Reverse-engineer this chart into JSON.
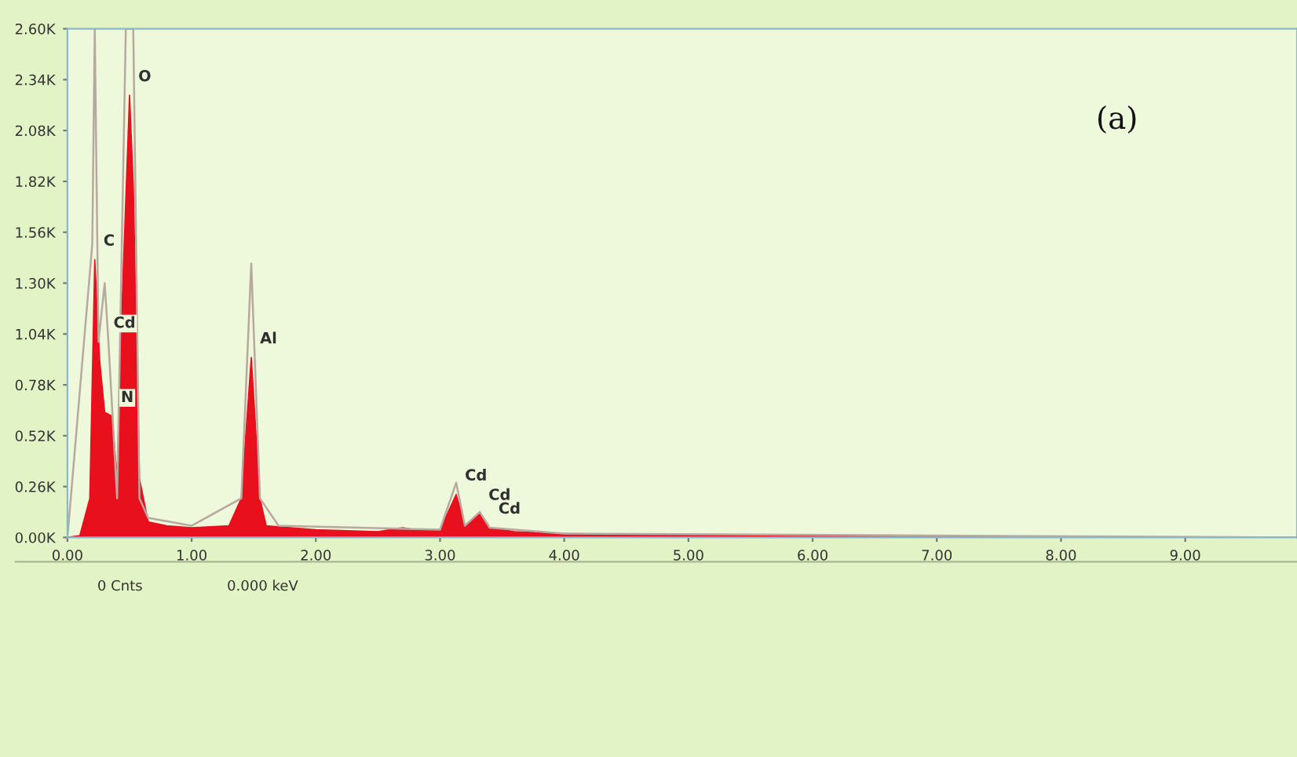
{
  "chart_data": {
    "type": "area",
    "x": [
      0.0,
      0.1,
      0.18,
      0.22,
      0.26,
      0.3,
      0.36,
      0.4,
      0.44,
      0.5,
      0.53,
      0.58,
      0.65,
      0.8,
      1.0,
      1.3,
      1.4,
      1.48,
      1.55,
      1.6,
      2.0,
      2.5,
      2.7,
      2.8,
      3.0,
      3.13,
      3.2,
      3.32,
      3.4,
      3.6,
      4.0,
      5.0,
      6.0,
      8.0,
      9.9
    ],
    "series": [
      {
        "color": "#e8101c",
        "values": [
          0,
          10,
          200,
          1420,
          900,
          640,
          620,
          300,
          1200,
          2260,
          1800,
          300,
          80,
          60,
          50,
          60,
          200,
          920,
          200,
          60,
          40,
          30,
          50,
          40,
          40,
          220,
          60,
          120,
          50,
          30,
          20,
          10,
          10,
          0,
          0
        ]
      },
      {
        "type": "line",
        "color": "#b8a8a0",
        "x": [
          0.0,
          0.2,
          0.22,
          0.25,
          0.3,
          0.33,
          0.4,
          0.47,
          0.53,
          0.58,
          0.65,
          1.0,
          1.4,
          1.48,
          1.55,
          1.7,
          3.0,
          3.13,
          3.2,
          3.32,
          3.4,
          4.0,
          9.9
        ],
        "values": [
          0,
          1500,
          2600,
          1000,
          1300,
          1000,
          200,
          2600,
          2600,
          200,
          100,
          60,
          200,
          1400,
          200,
          60,
          40,
          280,
          60,
          130,
          50,
          20,
          0
        ]
      }
    ],
    "xlim": [
      0,
      9.9
    ],
    "ylim": [
      0,
      2600
    ],
    "xticks": [
      {
        "value": 0,
        "label": "0.00"
      },
      {
        "value": 1,
        "label": "1.00"
      },
      {
        "value": 2,
        "label": "2.00"
      },
      {
        "value": 3,
        "label": "3.00"
      },
      {
        "value": 4,
        "label": "4.00"
      },
      {
        "value": 5,
        "label": "5.00"
      },
      {
        "value": 6,
        "label": "6.00"
      },
      {
        "value": 7,
        "label": "7.00"
      },
      {
        "value": 8,
        "label": "8.00"
      },
      {
        "value": 9,
        "label": "9.00"
      }
    ],
    "yticks": [
      {
        "value": 0,
        "label": "0.00K"
      },
      {
        "value": 260,
        "label": "0.26K"
      },
      {
        "value": 520,
        "label": "0.52K"
      },
      {
        "value": 780,
        "label": "0.78K"
      },
      {
        "value": 1040,
        "label": "1.04K"
      },
      {
        "value": 1300,
        "label": "1.30K"
      },
      {
        "value": 1560,
        "label": "1.56K"
      },
      {
        "value": 1820,
        "label": "1.82K"
      },
      {
        "value": 2080,
        "label": "2.08K"
      },
      {
        "value": 2340,
        "label": "2.34K"
      },
      {
        "value": 2600,
        "label": "2.60K"
      }
    ],
    "annotations": [
      {
        "text": "C",
        "x": 0.22,
        "y": 1420
      },
      {
        "text": "Cd",
        "x": 0.3,
        "y": 1000
      },
      {
        "text": "N",
        "x": 0.36,
        "y": 620
      },
      {
        "text": "O",
        "x": 0.5,
        "y": 2260
      },
      {
        "text": "Al",
        "x": 1.48,
        "y": 920
      },
      {
        "text": "Cd",
        "x": 3.13,
        "y": 220
      },
      {
        "text": "Cd",
        "x": 3.32,
        "y": 120
      },
      {
        "text": "Cd",
        "x": 3.4,
        "y": 50
      },
      "(a)",
      "0 Cnts",
      "0.000 keV"
    ],
    "grid": false,
    "legend": false
  }
}
